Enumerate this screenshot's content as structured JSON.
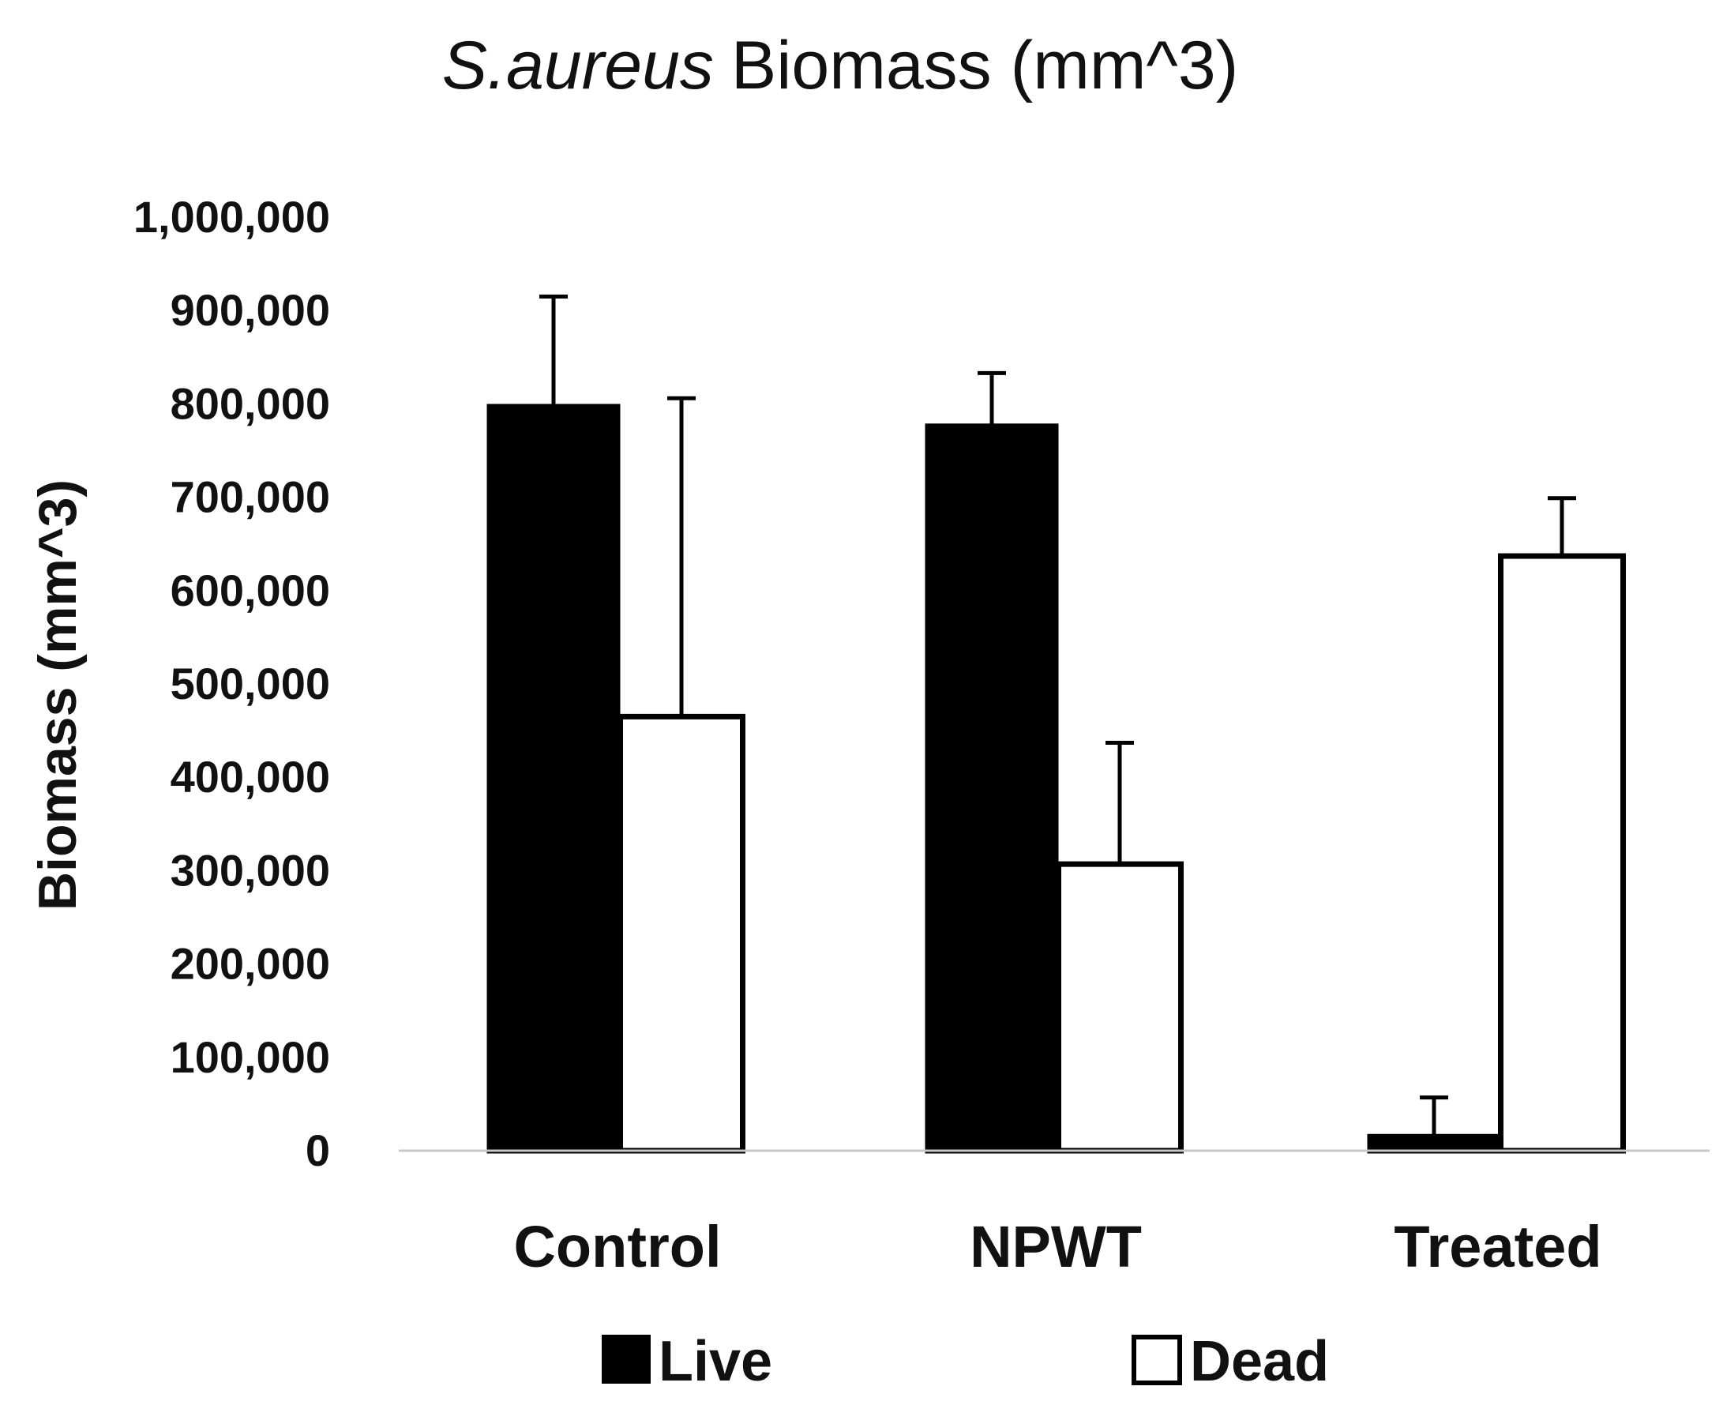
{
  "chart_data": {
    "type": "bar",
    "title": {
      "italic_part": "S.aureus",
      "rest": "Biomass (mm^3)"
    },
    "xlabel": "",
    "ylabel": "Biomass (mm^3)",
    "categories": [
      "Control",
      "NPWT",
      "Treated"
    ],
    "ylim": [
      0,
      1000000
    ],
    "yticks": [
      0,
      100000,
      200000,
      300000,
      400000,
      500000,
      600000,
      700000,
      800000,
      900000,
      1000000
    ],
    "ytick_labels": [
      "0",
      "100,000",
      "200,000",
      "300,000",
      "400,000",
      "500,000",
      "600,000",
      "700,000",
      "800,000",
      "900,000",
      "1,000,000"
    ],
    "grid": false,
    "legend_position": "bottom",
    "series": [
      {
        "name": "Live",
        "fill": "#000000",
        "values": [
          797000,
          776000,
          15000
        ],
        "error_upper": [
          915000,
          833000,
          57000
        ]
      },
      {
        "name": "Dead",
        "fill": "#ffffff",
        "values": [
          465000,
          307000,
          637000
        ],
        "error_upper": [
          806000,
          437000,
          699000
        ]
      }
    ],
    "colors": {
      "axis": "#c8c8c8",
      "outline": "#000000",
      "text": "#111111"
    }
  }
}
